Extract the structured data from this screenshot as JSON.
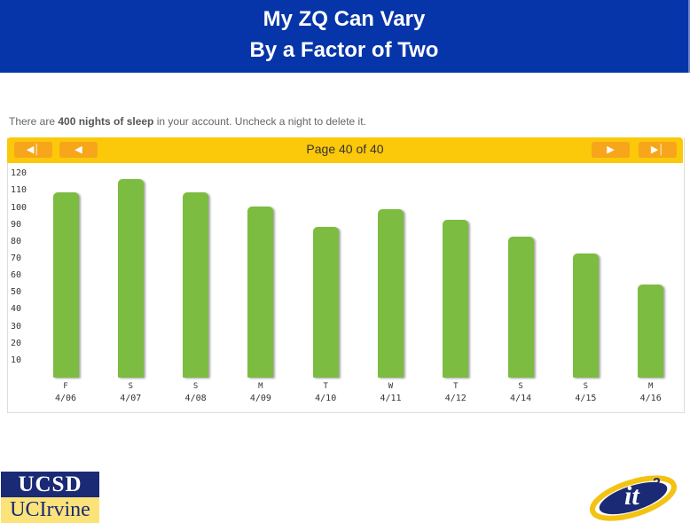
{
  "slide": {
    "title_line1": "My ZQ Can Vary",
    "title_line2": "By a Factor of Two"
  },
  "account": {
    "text_before": "There are ",
    "count_text": "400 nights of sleep",
    "text_after": " in your account. Uncheck a night to delete it."
  },
  "pager": {
    "first_icon": "first-page-icon",
    "prev_icon": "previous-page-icon",
    "next_icon": "next-page-icon",
    "last_icon": "last-page-icon",
    "label": "Page 40 of 40"
  },
  "chart_data": {
    "type": "bar",
    "categories": [
      "4/06",
      "4/07",
      "4/08",
      "4/09",
      "4/10",
      "4/11",
      "4/12",
      "4/14",
      "4/15",
      "4/16"
    ],
    "days": [
      "F",
      "S",
      "S",
      "M",
      "T",
      "W",
      "T",
      "S",
      "S",
      "M"
    ],
    "values": [
      109,
      117,
      109,
      101,
      89,
      99,
      93,
      83,
      73,
      55
    ],
    "yticks": [
      10,
      20,
      30,
      40,
      50,
      60,
      70,
      80,
      90,
      100,
      110,
      120
    ],
    "ylim": [
      0,
      120
    ],
    "grid": false,
    "bar_color": "#7cbc41"
  },
  "logos": {
    "ucsd": "UCSD",
    "uci": "UCIrvine",
    "it2": "it²"
  },
  "colors": {
    "title_bg": "#0535a8",
    "nav_bar": "#fcc80a",
    "nav_button": "#f7a61b"
  }
}
